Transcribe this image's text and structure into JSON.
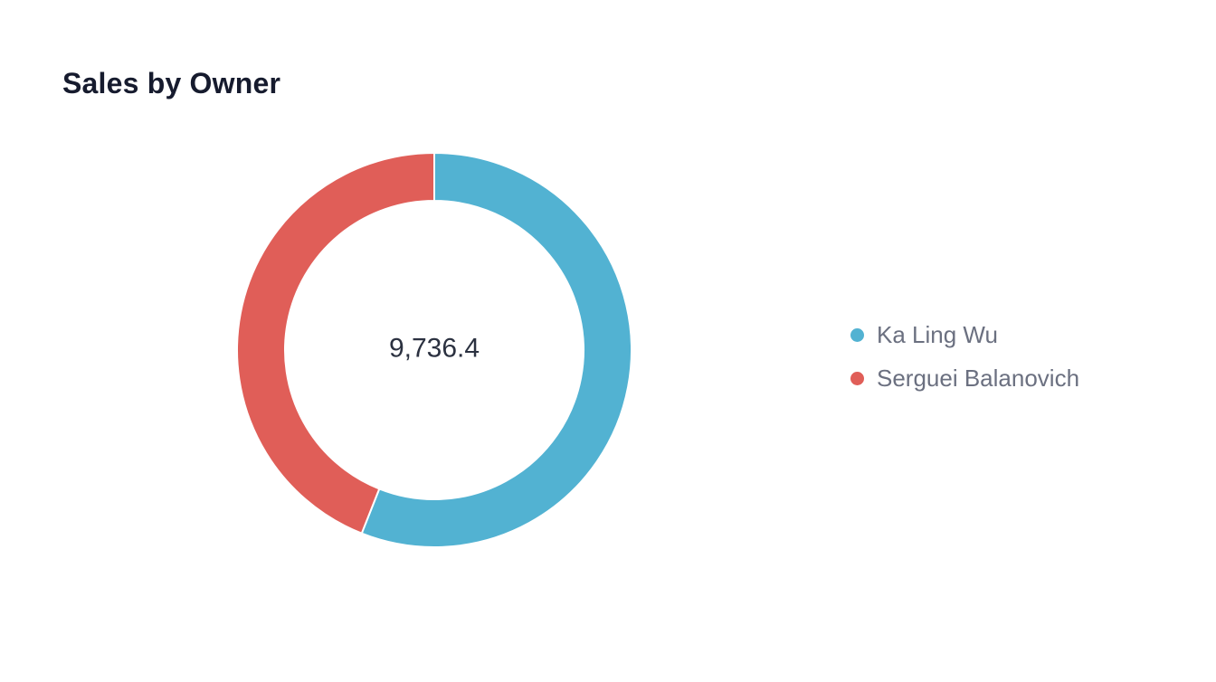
{
  "chart_data": {
    "type": "pie",
    "title": "Sales by Owner",
    "center_label": "9,736.4",
    "total": 9736.4,
    "categories": [
      "Ka Ling Wu",
      "Serguei Balanovich"
    ],
    "shares": [
      0.56,
      0.44
    ],
    "colors": [
      "#52b2d2",
      "#e05e58"
    ],
    "donut": true,
    "legend_position": "right"
  }
}
